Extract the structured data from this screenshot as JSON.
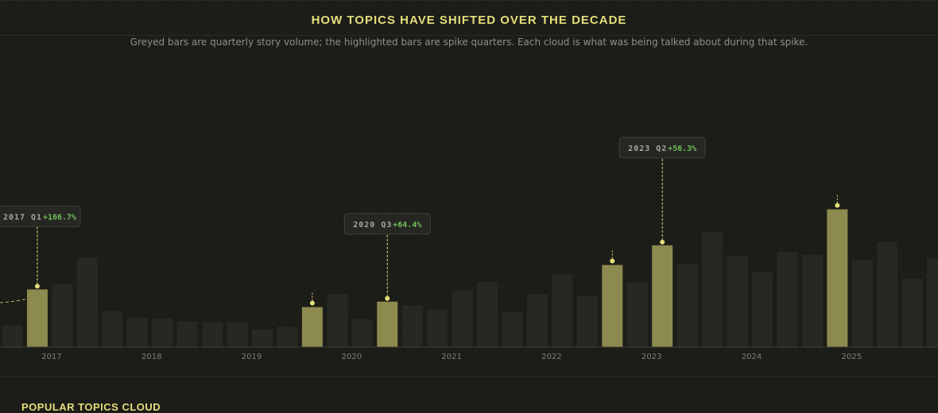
{
  "header": {
    "title": "HOW TOPICS HAVE SHIFTED OVER THE DECADE",
    "subtitle": "Greyed bars are quarterly story volume; the highlighted bars are spike quarters. Each cloud is what was being talked about during that spike."
  },
  "section": {
    "title": "POPULAR TOPICS CLOUD"
  },
  "colors": {
    "bar": "#272724",
    "highlight": "#8c8a4f",
    "marker": "#e4de7a",
    "label_bg": "#262722",
    "label_border": "#3f4038",
    "label_text": "#a8a89c",
    "positive": "#6fbf5a",
    "axis": "#3c3d36",
    "tick": "#7e7e76"
  },
  "chart_data": {
    "type": "bar",
    "x_unit": "quarter",
    "start": {
      "year": 2016,
      "quarter": 4
    },
    "values": [
      32,
      85,
      93,
      132,
      53,
      43,
      42,
      38,
      37,
      36,
      26,
      30,
      59,
      78,
      41,
      67,
      61,
      55,
      83,
      96,
      52,
      78,
      107,
      76,
      121,
      95,
      150,
      122,
      170,
      135,
      110,
      140,
      136,
      203,
      128,
      155,
      101,
      131
    ],
    "highlighted": [
      1,
      12,
      15,
      24,
      26,
      33
    ],
    "ylim": [
      0,
      240
    ],
    "xticks": [
      "2017",
      "2018",
      "2019",
      "2020",
      "2021",
      "2022",
      "2023",
      "2024",
      "2025"
    ],
    "annotations": [
      {
        "index": 1,
        "period": "2017 Q1",
        "change": "+166.7%",
        "level": 0.79
      },
      {
        "index": 15,
        "period": "2020 Q3",
        "change": "+64.4%",
        "level": 0.85
      },
      {
        "index": 26,
        "period": "2023 Q2",
        "change": "+56.3%",
        "level": 1.1
      }
    ],
    "spike_markers": [
      12,
      24,
      33
    ],
    "grid": false,
    "legend": "none"
  }
}
